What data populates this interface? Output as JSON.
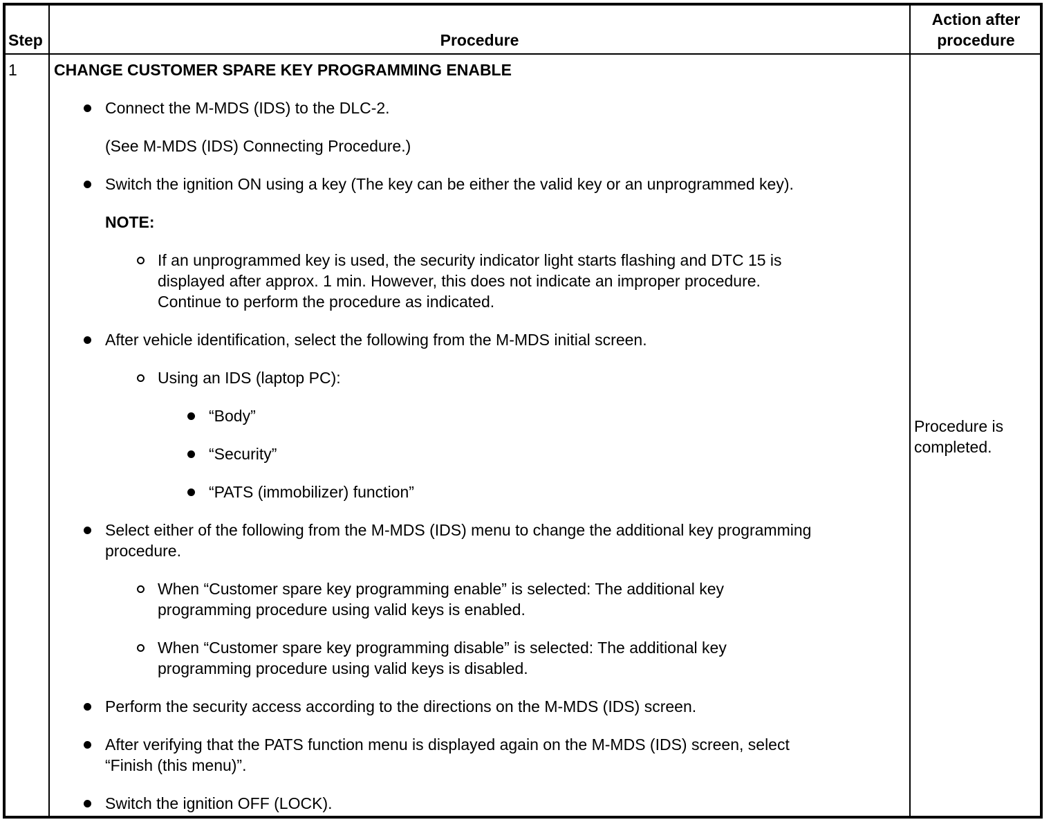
{
  "header": {
    "step": "Step",
    "procedure": "Procedure",
    "action_lines": [
      "Action after",
      "procedure"
    ]
  },
  "row": {
    "step": "1",
    "items": [
      {
        "level": 0,
        "marker": "none",
        "bold": true,
        "lines": [
          "CHANGE CUSTOMER SPARE KEY PROGRAMMING ENABLE"
        ]
      },
      {
        "level": 1,
        "marker": "bullet",
        "lines": [
          "Connect the M-MDS (IDS) to the DLC-2."
        ]
      },
      {
        "level": 1,
        "marker": "none",
        "lines": [
          "(See M-MDS (IDS) Connecting Procedure.)"
        ]
      },
      {
        "level": 1,
        "marker": "bullet",
        "lines": [
          "Switch the ignition ON using a key (The key can be either the valid key or an unprogrammed key)."
        ]
      },
      {
        "level": 1,
        "marker": "none",
        "bold": true,
        "lines": [
          "NOTE:"
        ]
      },
      {
        "level": 2,
        "marker": "circle",
        "lines": [
          "If an unprogrammed key is used, the security indicator light starts flashing and DTC 15 is",
          "displayed after approx. 1 min. However, this does not indicate an improper procedure.",
          "Continue to perform the procedure as indicated."
        ]
      },
      {
        "level": 1,
        "marker": "bullet",
        "lines": [
          "After vehicle identification, select the following from the M-MDS initial screen."
        ]
      },
      {
        "level": 2,
        "marker": "circle",
        "lines": [
          "Using an IDS (laptop PC):"
        ]
      },
      {
        "level": 3,
        "marker": "bullet",
        "lines": [
          "“Body”"
        ]
      },
      {
        "level": 3,
        "marker": "bullet",
        "lines": [
          "“Security”"
        ]
      },
      {
        "level": 3,
        "marker": "bullet",
        "lines": [
          "“PATS (immobilizer) function”"
        ]
      },
      {
        "level": 1,
        "marker": "bullet",
        "lines": [
          "Select either of the following from the M-MDS (IDS) menu to change the additional key programming",
          "procedure."
        ]
      },
      {
        "level": 2,
        "marker": "circle",
        "lines": [
          "When “Customer spare key programming enable” is selected: The additional key",
          "programming procedure using valid keys is enabled."
        ]
      },
      {
        "level": 2,
        "marker": "circle",
        "lines": [
          "When “Customer spare key programming disable” is selected: The additional key",
          "programming procedure using valid keys is disabled."
        ]
      },
      {
        "level": 1,
        "marker": "bullet",
        "lines": [
          "Perform the security access according to the directions on the M-MDS (IDS) screen."
        ]
      },
      {
        "level": 1,
        "marker": "bullet",
        "lines": [
          "After verifying that the PATS function menu is displayed again on the M-MDS (IDS) screen, select",
          "“Finish (this menu)”."
        ]
      },
      {
        "level": 1,
        "marker": "bullet",
        "lines": [
          "Switch the ignition OFF (LOCK)."
        ]
      }
    ],
    "action_lines": [
      "Procedure is",
      "completed."
    ]
  }
}
